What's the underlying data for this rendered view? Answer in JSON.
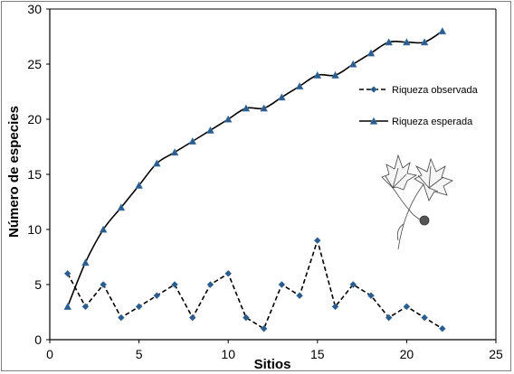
{
  "chart_data": {
    "type": "line",
    "xlabel": "Sitios",
    "ylabel": "Número de especies",
    "xlim": [
      0,
      25
    ],
    "ylim": [
      0,
      30
    ],
    "xticks": [
      0,
      5,
      10,
      15,
      20,
      25
    ],
    "yticks": [
      0,
      5,
      10,
      15,
      20,
      25,
      30
    ],
    "grid": false,
    "legend_position": "right",
    "series": [
      {
        "name": "Riqueza observada",
        "style": "dashed",
        "marker": "diamond",
        "color": "#000000",
        "marker_color": "#2e5c8a",
        "x": [
          1,
          2,
          3,
          4,
          5,
          6,
          7,
          8,
          9,
          10,
          11,
          12,
          13,
          14,
          15,
          16,
          17,
          18,
          19,
          20,
          21,
          22
        ],
        "y": [
          6,
          3,
          5,
          2,
          3,
          4,
          5,
          2,
          5,
          6,
          2,
          1,
          5,
          4,
          9,
          3,
          5,
          4,
          2,
          3,
          2,
          1
        ]
      },
      {
        "name": "Riqueza esperada",
        "style": "solid",
        "marker": "triangle",
        "color": "#000000",
        "marker_color": "#2e5c8a",
        "x": [
          1,
          2,
          3,
          4,
          5,
          6,
          7,
          8,
          9,
          10,
          11,
          12,
          13,
          14,
          15,
          16,
          17,
          18,
          19,
          20,
          21,
          22
        ],
        "y": [
          3,
          7,
          10,
          12,
          14,
          16,
          17,
          18,
          19,
          20,
          21,
          21,
          22,
          23,
          24,
          24,
          25,
          26,
          27,
          27,
          27,
          28
        ]
      }
    ]
  }
}
